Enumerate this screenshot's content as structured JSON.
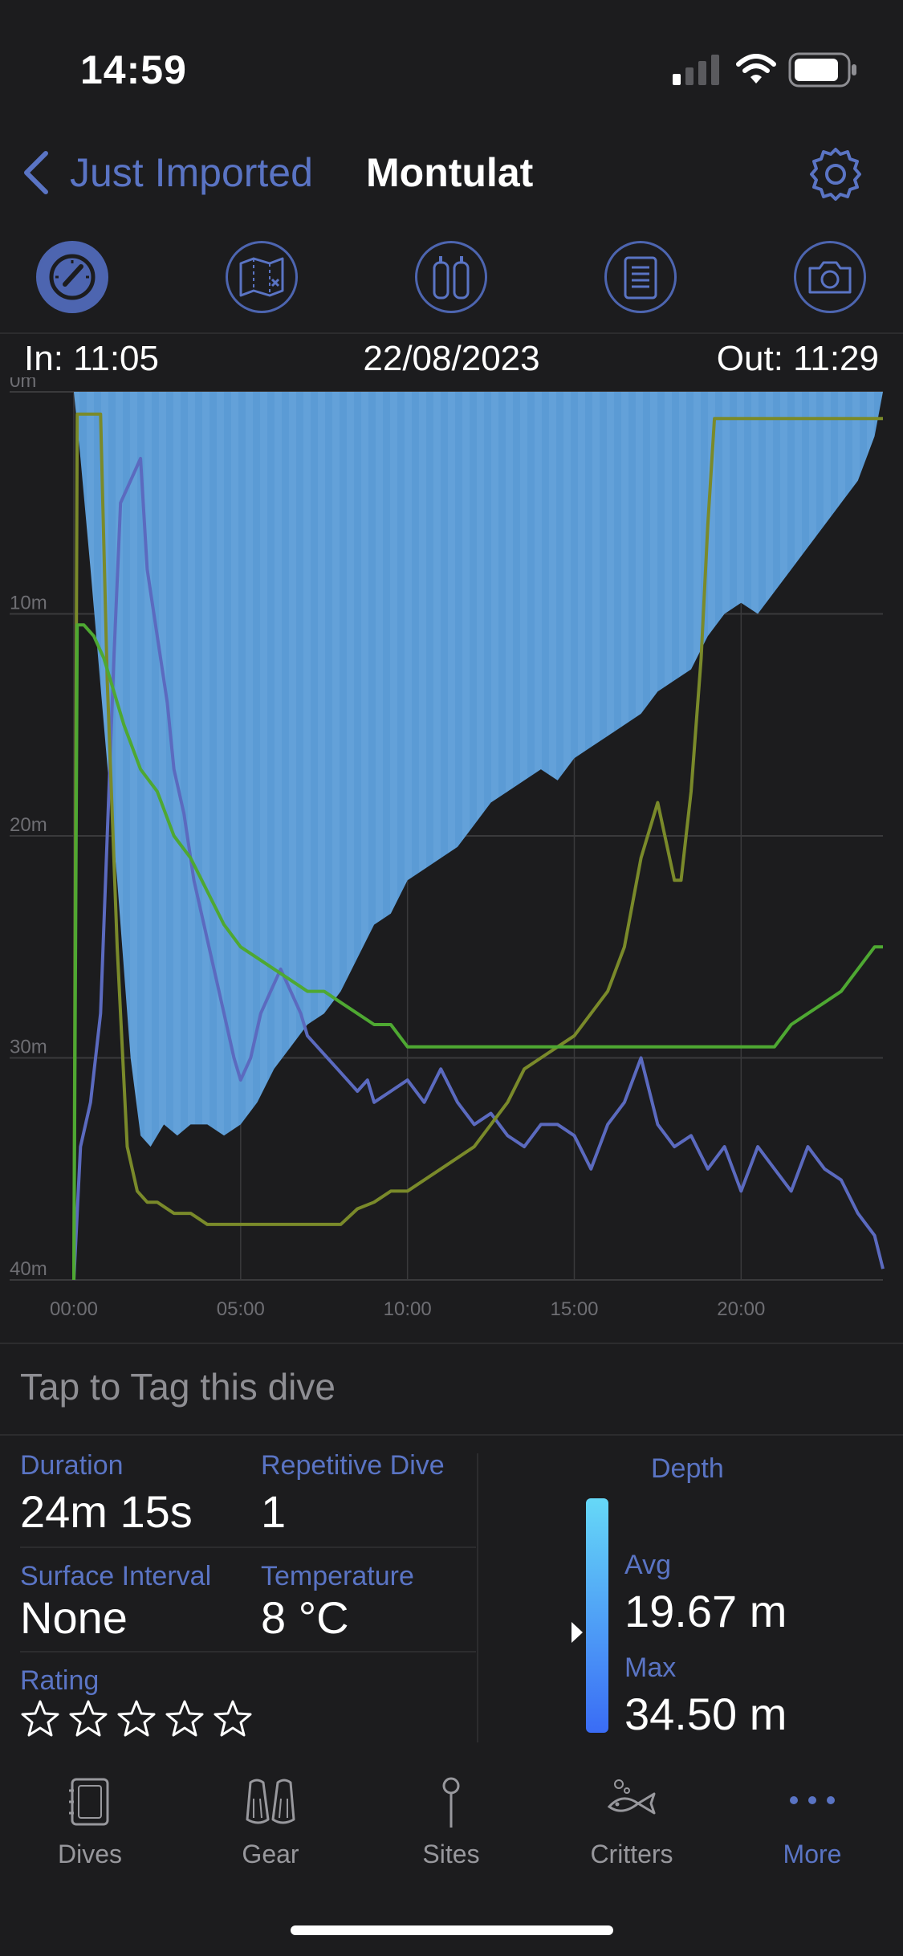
{
  "status_bar": {
    "time": "14:59"
  },
  "nav": {
    "back_label": "Just Imported",
    "title": "Montulat"
  },
  "toolbar": {
    "items": [
      "gauge-icon",
      "map-icon",
      "tanks-icon",
      "notes-icon",
      "camera-icon"
    ]
  },
  "dive": {
    "in_time": "In: 11:05",
    "date": "22/08/2023",
    "out_time": "Out: 11:29"
  },
  "chart_data": {
    "type": "line",
    "title": "",
    "x_unit": "mm:ss",
    "y_unit": "m",
    "xlim": [
      0,
      24.25
    ],
    "ylim": [
      0,
      40
    ],
    "y_inverted": true,
    "x_ticks": [
      "00:00",
      "05:00",
      "10:00",
      "15:00",
      "20:00"
    ],
    "x_tick_values": [
      0,
      5,
      10,
      15,
      20
    ],
    "y_ticks": [
      "0m",
      "10m",
      "20m",
      "30m",
      "40m"
    ],
    "y_tick_values": [
      0,
      10,
      20,
      30,
      40
    ],
    "depth": {
      "color": "#5b9bd5",
      "x": [
        0,
        0.2,
        0.5,
        0.9,
        1.3,
        1.7,
        2.0,
        2.3,
        2.7,
        3.1,
        3.5,
        4.0,
        4.5,
        5.0,
        5.5,
        6.0,
        6.5,
        7.0,
        7.5,
        8.0,
        8.5,
        9.0,
        9.5,
        10.0,
        10.5,
        11.0,
        11.5,
        12.0,
        12.5,
        13.0,
        13.5,
        14.0,
        14.5,
        15.0,
        15.5,
        16.0,
        16.5,
        17.0,
        17.5,
        18.0,
        18.5,
        19.0,
        19.5,
        20.0,
        20.5,
        21.0,
        21.5,
        22.0,
        22.5,
        23.0,
        23.5,
        24.0,
        24.25
      ],
      "y": [
        0,
        3,
        8,
        15,
        22,
        30,
        33.5,
        34,
        33,
        33.5,
        33,
        33,
        33.5,
        33,
        32,
        30.5,
        29.5,
        28.5,
        28,
        27,
        25.5,
        24,
        23.5,
        22,
        21.5,
        21,
        20.5,
        19.5,
        18.5,
        18,
        17.5,
        17,
        17.5,
        16.5,
        16,
        15.5,
        15,
        14.5,
        13.5,
        13,
        12.5,
        11,
        10,
        9.5,
        10,
        9,
        8,
        7,
        6,
        5,
        4,
        2,
        0
      ]
    },
    "temperature": {
      "color": "#5b6abf",
      "x": [
        0,
        0.2,
        0.5,
        0.8,
        1.0,
        1.2,
        1.4,
        1.7,
        2.0,
        2.2,
        2.5,
        2.8,
        3.0,
        3.3,
        3.6,
        3.9,
        4.2,
        4.5,
        4.8,
        5.0,
        5.3,
        5.6,
        5.9,
        6.2,
        6.5,
        6.8,
        7.0,
        7.3,
        7.6,
        7.9,
        8.2,
        8.5,
        8.8,
        9.0,
        9.5,
        10.0,
        10.5,
        11.0,
        11.5,
        12.0,
        12.5,
        13.0,
        13.5,
        14.0,
        14.5,
        15.0,
        15.5,
        16.0,
        16.5,
        17.0,
        17.5,
        18.0,
        18.5,
        19.0,
        19.5,
        20.0,
        20.5,
        21.0,
        21.5,
        22.0,
        22.5,
        23.0,
        23.5,
        24.0,
        24.25
      ],
      "y": [
        40,
        34,
        32,
        28,
        20,
        12,
        5,
        4,
        3,
        8,
        11,
        14,
        17,
        19,
        22,
        24,
        26,
        28,
        30,
        31,
        30,
        28,
        27,
        26,
        27,
        28,
        29,
        29.5,
        30,
        30.5,
        31,
        31.5,
        31,
        32,
        31.5,
        31,
        32,
        30.5,
        32,
        33,
        32.5,
        33.5,
        34,
        33,
        33,
        33.5,
        35,
        33,
        32,
        30,
        33,
        34,
        33.5,
        35,
        34,
        36,
        34,
        35,
        36,
        34,
        35,
        35.5,
        37,
        38,
        39.5
      ]
    },
    "ndl": {
      "color": "#7a8a2a",
      "x": [
        0,
        0.1,
        0.2,
        0.5,
        0.8,
        1.0,
        1.3,
        1.6,
        1.9,
        2.2,
        2.5,
        3.0,
        3.5,
        4.0,
        4.5,
        5.0,
        5.5,
        6.0,
        6.5,
        7.0,
        7.5,
        8.0,
        8.5,
        9.0,
        9.5,
        10.0,
        10.5,
        11.0,
        11.5,
        12.0,
        12.5,
        13.0,
        13.5,
        14.0,
        14.5,
        15.0,
        15.5,
        16.0,
        16.5,
        17.0,
        17.5,
        18.0,
        18.2,
        18.5,
        18.8,
        19.0,
        19.2,
        19.5,
        20.0,
        21.0,
        22.0,
        23.0,
        24.0,
        24.25
      ],
      "y": [
        40,
        1,
        1,
        1,
        1,
        13,
        25,
        34,
        36,
        36.5,
        36.5,
        37,
        37,
        37.5,
        37.5,
        37.5,
        37.5,
        37.5,
        37.5,
        37.5,
        37.5,
        37.5,
        36.8,
        36.5,
        36,
        36,
        35.5,
        35,
        34.5,
        34,
        33,
        32,
        30.5,
        30,
        29.5,
        29,
        28,
        27,
        25,
        21,
        18.5,
        22,
        22,
        18,
        12,
        6,
        1.2,
        1.2,
        1.2,
        1.2,
        1.2,
        1.2,
        1.2,
        1.2
      ]
    },
    "ceiling": {
      "color": "#4ea832",
      "x": [
        0,
        0.1,
        0.3,
        0.6,
        0.9,
        1.2,
        1.5,
        2.0,
        2.5,
        3.0,
        3.5,
        4.0,
        4.5,
        5.0,
        5.5,
        6.0,
        6.5,
        7.0,
        7.5,
        8.0,
        8.5,
        9.0,
        9.5,
        10.0,
        11.0,
        12.0,
        13.0,
        14.0,
        15.0,
        16.0,
        17.0,
        18.0,
        19.0,
        19.5,
        20.0,
        20.5,
        21.0,
        21.5,
        22.0,
        22.5,
        23.0,
        23.5,
        24.0,
        24.25
      ],
      "y": [
        40,
        10.5,
        10.5,
        11,
        12,
        13.5,
        15,
        17,
        18,
        20,
        21,
        22.5,
        24,
        25,
        25.5,
        26,
        26.5,
        27,
        27,
        27.5,
        28,
        28.5,
        28.5,
        29.5,
        29.5,
        29.5,
        29.5,
        29.5,
        29.5,
        29.5,
        29.5,
        29.5,
        29.5,
        29.5,
        29.5,
        29.5,
        29.5,
        28.5,
        28,
        27.5,
        27,
        26,
        25,
        25
      ]
    }
  },
  "tag": {
    "prompt": "Tap to Tag this dive"
  },
  "stats": {
    "duration_label": "Duration",
    "duration_value": "24m 15s",
    "repetitive_label": "Repetitive Dive",
    "repetitive_value": "1",
    "surface_label": "Surface Interval",
    "surface_value": "None",
    "temperature_label": "Temperature",
    "temperature_value": "8 °C",
    "rating_label": "Rating",
    "rating_value": 0,
    "rating_max": 5
  },
  "depth_summary": {
    "title": "Depth",
    "avg_label": "Avg",
    "avg_value": "19.67 m",
    "max_label": "Max",
    "max_value": "34.50 m",
    "gradient_colors": [
      "#66d8f7",
      "#3a6cf5"
    ]
  },
  "tabbar": {
    "items": [
      {
        "label": "Dives",
        "icon": "dives-icon",
        "active": false
      },
      {
        "label": "Gear",
        "icon": "fins-icon",
        "active": false
      },
      {
        "label": "Sites",
        "icon": "pin-icon",
        "active": false
      },
      {
        "label": "Critters",
        "icon": "fish-icon",
        "active": false
      },
      {
        "label": "More",
        "icon": "more-icon",
        "active": true
      }
    ]
  },
  "colors": {
    "accent": "#5a74c4",
    "background": "#1c1c1e"
  }
}
